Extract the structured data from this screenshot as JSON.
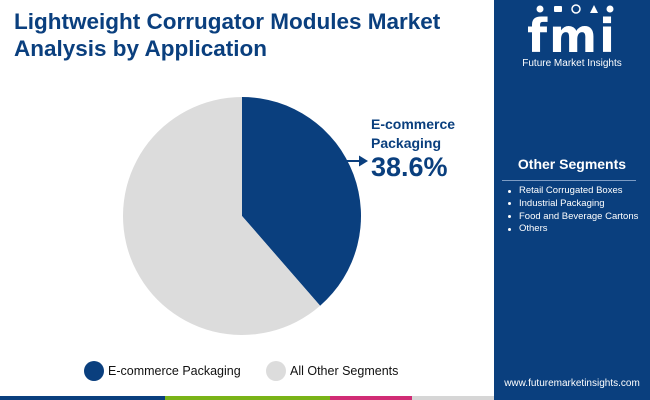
{
  "header": {
    "title_line1": "Lightweight Corrugator Modules Market",
    "title_line2": "Analysis by Application"
  },
  "logo": {
    "mark": "fmi",
    "subtitle": "Future Market Insights"
  },
  "other_segments": {
    "title": "Other Segments",
    "items": [
      "Retail Corrugated Boxes",
      "Industrial Packaging",
      "Food and Beverage Cartons",
      "Others"
    ]
  },
  "website": "www.futuremarketinsights.com",
  "colors": {
    "primary": "#0a3f7e",
    "other": "#dcdcdc",
    "bar": [
      "#0a3f7e",
      "#7ab317",
      "#d12c75",
      "#d6d6d6"
    ]
  },
  "chart_data": {
    "type": "pie",
    "title": "Lightweight Corrugator Modules Market Analysis by Application",
    "slices": [
      {
        "label": "E-commerce Packaging",
        "value": 38.6,
        "color": "#0a3f7e"
      },
      {
        "label": "All Other Segments",
        "value": 61.4,
        "color": "#dcdcdc"
      }
    ],
    "start_angle_deg": 0,
    "direction": "clockwise",
    "legend_position": "bottom",
    "annotation": {
      "label_line1": "E-commerce",
      "label_line2": "Packaging",
      "value_text": "38.6%"
    }
  }
}
